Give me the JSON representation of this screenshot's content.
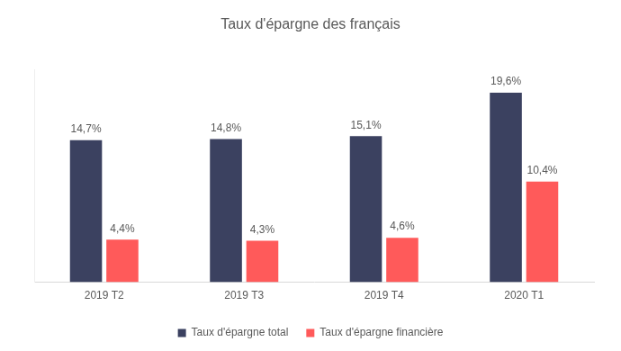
{
  "chart_data": {
    "type": "bar",
    "title": "Taux d'épargne des français",
    "categories": [
      "2019 T2",
      "2019 T3",
      "2019 T4",
      "2020 T1"
    ],
    "series": [
      {
        "name": "Taux d'épargne total",
        "color": "#3b4160",
        "values": [
          14.7,
          14.8,
          15.1,
          19.6
        ],
        "value_labels": [
          "14,7%",
          "14,8%",
          "15,1%",
          "19,6%"
        ]
      },
      {
        "name": "Taux d'épargne financière",
        "color": "#ff5a5a",
        "values": [
          4.4,
          4.3,
          4.6,
          10.4
        ],
        "value_labels": [
          "4,4%",
          "4,3%",
          "4,6%",
          "10,4%"
        ]
      }
    ],
    "ylim": [
      0,
      22
    ],
    "grid": false,
    "legend": "bottom",
    "data_labels": true,
    "tick_labels": "x"
  }
}
